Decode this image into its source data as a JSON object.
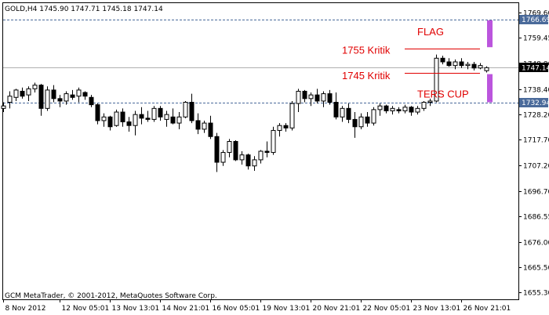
{
  "header": {
    "text": "GOLD,H4  1745.90 1747.71 1745.18 1747.14"
  },
  "footer": {
    "copyright": "GCM MetaTrader, © 2001-2012, MetaQuotes Software Corp."
  },
  "chart_data": {
    "type": "candlestick",
    "symbol": "GOLD",
    "timeframe": "H4",
    "ohlc_readout": {
      "open": 1745.9,
      "high": 1747.71,
      "low": 1745.18,
      "close": 1747.14
    },
    "ylim": [
      1652.5,
      1773.5
    ],
    "y_ticks": [
      1769.6,
      1759.45,
      1748.8,
      1738.4,
      1728.2,
      1717.7,
      1707.2,
      1696.7,
      1686.55,
      1676.0,
      1665.5,
      1655.3
    ],
    "y_tick_labels": [
      "1769.60",
      "1759.45",
      "1748.80",
      "1738.40",
      "1728.20",
      "1717.70",
      "1707.20",
      "1696.70",
      "1686.55",
      "1676.00",
      "1665.50",
      "1655.30"
    ],
    "x_tick_labels": [
      "8 Nov 2012",
      "12 Nov 05:01",
      "13 Nov 13:01",
      "14 Nov 21:01",
      "16 Nov 05:01",
      "19 Nov 13:01",
      "20 Nov 21:01",
      "22 Nov 05:01",
      "23 Nov 13:01",
      "26 Nov 21:01"
    ],
    "x_tick_bars": [
      0,
      9,
      17,
      25,
      33,
      41,
      49,
      57,
      65,
      73
    ],
    "grid": false,
    "current_price": {
      "value": 1747.14,
      "label": "1747.14",
      "color": "#000000"
    },
    "levels": [
      {
        "value": 1766.69,
        "label": "1766.69",
        "style": "dashed",
        "color": "#4a6a9a"
      },
      {
        "value": 1732.94,
        "label": "1732.94",
        "style": "dashed",
        "color": "#4a6a9a"
      }
    ],
    "annotations": [
      {
        "text": "FLAG",
        "price": 1762.0,
        "bar": 66
      },
      {
        "text": "1755 Kritik",
        "price": 1754.5,
        "bar": 54
      },
      {
        "text": "1745 Kritik",
        "price": 1744.0,
        "bar": 54
      },
      {
        "text": "TERS CUP",
        "price": 1736.5,
        "bar": 66
      }
    ],
    "trend_lines": [
      {
        "price": 1755.0,
        "bar_start": 64,
        "bar_end": 76,
        "color": "#e00000"
      },
      {
        "price": 1745.0,
        "bar_start": 64,
        "bar_end": 76,
        "color": "#e00000"
      }
    ],
    "markers": [
      {
        "price_top": 1766.5,
        "price_bottom": 1755.5,
        "bar": 77.5,
        "color": "#bb55dd"
      },
      {
        "price_top": 1744.5,
        "price_bottom": 1733.0,
        "bar": 77.5,
        "color": "#bb55dd"
      }
    ],
    "candles": [
      [
        1730.5,
        1733.0,
        1729.0,
        1731.5
      ],
      [
        1733.0,
        1737.5,
        1730.5,
        1735.5
      ],
      [
        1735.0,
        1738.5,
        1733.5,
        1738.0
      ],
      [
        1737.5,
        1739.0,
        1734.5,
        1735.5
      ],
      [
        1736.0,
        1739.5,
        1733.5,
        1738.5
      ],
      [
        1738.5,
        1741.0,
        1737.0,
        1740.0
      ],
      [
        1740.0,
        1740.5,
        1727.5,
        1730.5
      ],
      [
        1730.5,
        1739.5,
        1729.5,
        1738.0
      ],
      [
        1738.0,
        1740.0,
        1733.0,
        1734.5
      ],
      [
        1734.5,
        1736.0,
        1731.0,
        1733.5
      ],
      [
        1733.5,
        1737.5,
        1732.0,
        1736.5
      ],
      [
        1736.0,
        1738.0,
        1734.0,
        1735.0
      ],
      [
        1735.5,
        1739.0,
        1733.0,
        1738.0
      ],
      [
        1737.0,
        1737.5,
        1734.0,
        1735.5
      ],
      [
        1735.0,
        1736.0,
        1731.0,
        1732.0
      ],
      [
        1732.0,
        1732.5,
        1724.0,
        1725.5
      ],
      [
        1725.5,
        1728.5,
        1723.0,
        1727.0
      ],
      [
        1727.0,
        1727.5,
        1721.5,
        1723.0
      ],
      [
        1723.5,
        1730.0,
        1723.0,
        1729.0
      ],
      [
        1729.0,
        1730.5,
        1723.0,
        1725.0
      ],
      [
        1725.0,
        1727.0,
        1721.0,
        1723.5
      ],
      [
        1723.5,
        1729.5,
        1719.5,
        1728.0
      ],
      [
        1728.0,
        1731.0,
        1724.0,
        1726.5
      ],
      [
        1726.5,
        1729.5,
        1725.0,
        1726.0
      ],
      [
        1726.0,
        1731.5,
        1725.0,
        1730.5
      ],
      [
        1730.5,
        1731.5,
        1725.5,
        1727.0
      ],
      [
        1726.0,
        1729.5,
        1723.0,
        1728.0
      ],
      [
        1727.0,
        1730.5,
        1724.0,
        1724.5
      ],
      [
        1724.5,
        1729.0,
        1722.0,
        1727.0
      ],
      [
        1727.0,
        1733.5,
        1726.5,
        1733.0
      ],
      [
        1733.0,
        1736.5,
        1724.5,
        1725.5
      ],
      [
        1725.5,
        1728.5,
        1720.0,
        1722.0
      ],
      [
        1722.0,
        1725.5,
        1720.5,
        1724.5
      ],
      [
        1724.5,
        1727.5,
        1718.0,
        1719.0
      ],
      [
        1719.0,
        1720.5,
        1704.5,
        1708.5
      ],
      [
        1708.5,
        1713.5,
        1707.0,
        1712.5
      ],
      [
        1712.5,
        1718.0,
        1710.5,
        1717.0
      ],
      [
        1717.0,
        1717.5,
        1709.0,
        1709.5
      ],
      [
        1709.5,
        1713.0,
        1707.5,
        1711.5
      ],
      [
        1711.5,
        1712.0,
        1705.5,
        1707.0
      ],
      [
        1707.0,
        1711.0,
        1705.0,
        1709.5
      ],
      [
        1709.5,
        1713.5,
        1708.0,
        1713.0
      ],
      [
        1713.0,
        1717.0,
        1710.5,
        1712.5
      ],
      [
        1712.5,
        1723.0,
        1711.5,
        1721.5
      ],
      [
        1721.5,
        1724.5,
        1719.0,
        1723.5
      ],
      [
        1723.5,
        1724.5,
        1721.0,
        1722.5
      ],
      [
        1722.5,
        1733.5,
        1721.5,
        1732.5
      ],
      [
        1732.5,
        1738.5,
        1729.0,
        1737.5
      ],
      [
        1737.5,
        1738.0,
        1733.0,
        1734.5
      ],
      [
        1734.5,
        1737.0,
        1731.5,
        1736.0
      ],
      [
        1736.0,
        1738.5,
        1732.5,
        1733.5
      ],
      [
        1733.5,
        1737.5,
        1731.0,
        1736.5
      ],
      [
        1736.5,
        1738.0,
        1732.0,
        1733.0
      ],
      [
        1733.0,
        1737.0,
        1726.0,
        1727.0
      ],
      [
        1727.0,
        1731.5,
        1725.0,
        1730.5
      ],
      [
        1730.5,
        1732.5,
        1724.5,
        1726.0
      ],
      [
        1726.0,
        1729.0,
        1718.5,
        1723.0
      ],
      [
        1723.0,
        1728.5,
        1722.0,
        1727.0
      ],
      [
        1727.0,
        1729.0,
        1723.0,
        1724.5
      ],
      [
        1724.5,
        1731.0,
        1723.5,
        1730.0
      ],
      [
        1730.0,
        1732.5,
        1727.5,
        1731.5
      ],
      [
        1731.5,
        1732.0,
        1728.5,
        1729.5
      ],
      [
        1729.5,
        1731.5,
        1728.0,
        1730.5
      ],
      [
        1730.0,
        1731.0,
        1728.5,
        1729.5
      ],
      [
        1729.5,
        1732.0,
        1728.5,
        1731.0
      ],
      [
        1731.0,
        1731.5,
        1727.5,
        1729.0
      ],
      [
        1729.0,
        1731.5,
        1728.0,
        1730.5
      ],
      [
        1730.5,
        1733.5,
        1729.5,
        1733.0
      ],
      [
        1733.0,
        1734.5,
        1731.5,
        1733.5
      ],
      [
        1733.5,
        1752.5,
        1733.0,
        1751.0
      ],
      [
        1751.0,
        1752.0,
        1748.5,
        1749.5
      ],
      [
        1749.5,
        1751.0,
        1747.5,
        1748.0
      ],
      [
        1748.0,
        1750.5,
        1746.5,
        1749.5
      ],
      [
        1749.5,
        1751.0,
        1747.0,
        1748.0
      ],
      [
        1748.0,
        1749.5,
        1746.5,
        1748.5
      ],
      [
        1748.5,
        1749.5,
        1746.0,
        1747.0
      ],
      [
        1747.0,
        1749.0,
        1746.5,
        1748.0
      ],
      [
        1745.9,
        1747.71,
        1745.18,
        1747.14
      ]
    ]
  }
}
